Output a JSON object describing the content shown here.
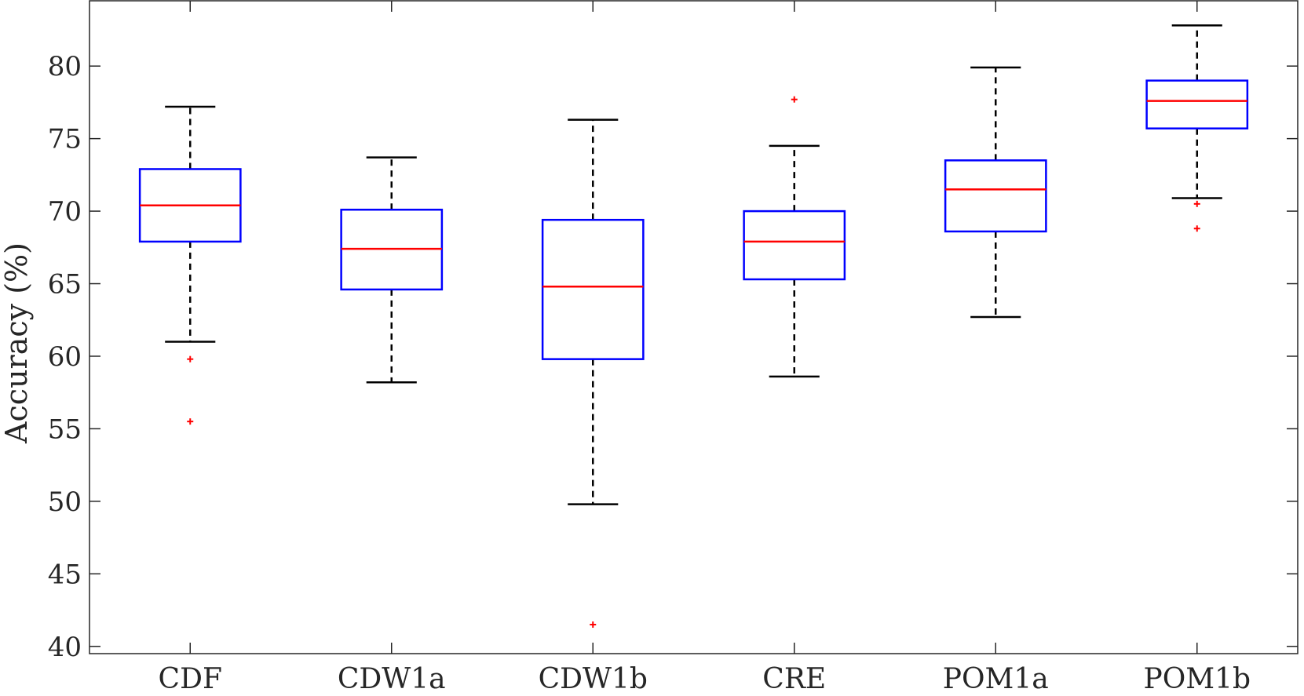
{
  "chart_data": {
    "type": "box",
    "title": "",
    "xlabel": "",
    "ylabel": "Accuracy (%)",
    "ylim": [
      39.5,
      84.5
    ],
    "yticks": [
      40,
      45,
      50,
      55,
      60,
      65,
      70,
      75,
      80
    ],
    "ytick_labels": [
      "40",
      "45",
      "50",
      "55",
      "60",
      "65",
      "70",
      "75",
      "80"
    ],
    "categories": [
      "CDF",
      "CDW1a",
      "CDW1b",
      "CRE",
      "POM1a",
      "POM1b"
    ],
    "grid": false,
    "legend": "none",
    "colors": {
      "box": "#0000ff",
      "median": "#ff0000",
      "whisker": "#000000",
      "outlier": "#ff0000",
      "axis": "#262626"
    },
    "boxes": [
      {
        "name": "CDF",
        "whisker_low": 61.0,
        "q1": 67.9,
        "median": 70.4,
        "q3": 72.9,
        "whisker_high": 77.2,
        "outliers": [
          59.8,
          55.5
        ]
      },
      {
        "name": "CDW1a",
        "whisker_low": 58.2,
        "q1": 64.6,
        "median": 67.4,
        "q3": 70.1,
        "whisker_high": 73.7,
        "outliers": []
      },
      {
        "name": "CDW1b",
        "whisker_low": 49.8,
        "q1": 59.8,
        "median": 64.8,
        "q3": 69.4,
        "whisker_high": 76.3,
        "outliers": [
          41.5
        ]
      },
      {
        "name": "CRE",
        "whisker_low": 58.6,
        "q1": 65.3,
        "median": 67.9,
        "q3": 70.0,
        "whisker_high": 74.5,
        "outliers": [
          77.7
        ]
      },
      {
        "name": "POM1a",
        "whisker_low": 62.7,
        "q1": 68.6,
        "median": 71.5,
        "q3": 73.5,
        "whisker_high": 79.9,
        "outliers": []
      },
      {
        "name": "POM1b",
        "whisker_low": 70.9,
        "q1": 75.7,
        "median": 77.6,
        "q3": 79.0,
        "whisker_high": 82.8,
        "outliers": [
          70.5,
          68.8
        ]
      }
    ]
  }
}
